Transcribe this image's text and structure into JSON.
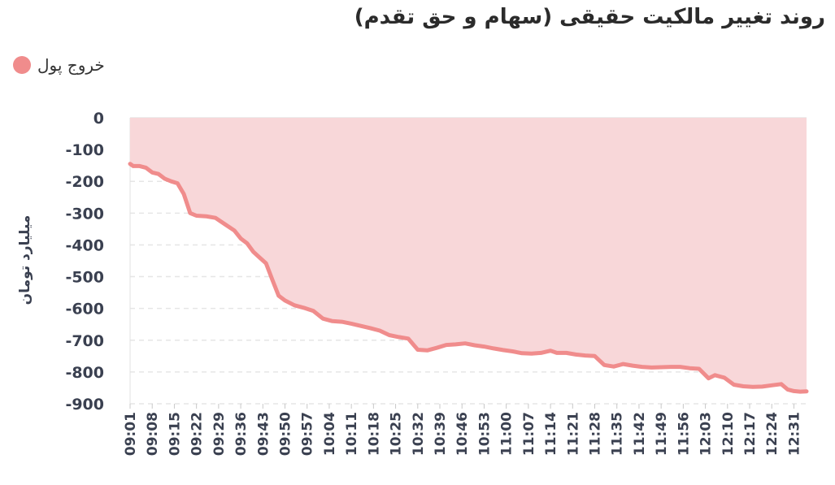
{
  "chart_data": {
    "type": "area",
    "title": "روند تغییر مالکیت حقیقی (سهام و حق تقدم)",
    "ylabel": "میلیارد تومان",
    "xlabel": "",
    "ylim": [
      -900,
      0
    ],
    "yticks": [
      0,
      -100,
      -200,
      -300,
      -400,
      -500,
      -600,
      -700,
      -800,
      -900
    ],
    "grid": true,
    "legend_position": "top-left",
    "x_tick_labels": [
      "09:01",
      "09:08",
      "09:15",
      "09:22",
      "09:29",
      "09:36",
      "09:43",
      "09:50",
      "09:57",
      "10:04",
      "10:11",
      "10:18",
      "10:25",
      "10:32",
      "10:39",
      "10:46",
      "10:53",
      "11:00",
      "11:07",
      "11:14",
      "11:21",
      "11:28",
      "11:35",
      "11:42",
      "11:49",
      "11:56",
      "12:03",
      "12:10",
      "12:17",
      "12:24",
      "12:31"
    ],
    "series": [
      {
        "name": "خروج پول",
        "color": "#f08c8c",
        "fill_color": "#f8d7d9",
        "points": [
          [
            "09:01",
            -145
          ],
          [
            "09:02",
            -152
          ],
          [
            "09:04",
            -152
          ],
          [
            "09:06",
            -157
          ],
          [
            "09:08",
            -172
          ],
          [
            "09:10",
            -177
          ],
          [
            "09:12",
            -192
          ],
          [
            "09:14",
            -200
          ],
          [
            "09:16",
            -206
          ],
          [
            "09:18",
            -240
          ],
          [
            "09:20",
            -300
          ],
          [
            "09:22",
            -308
          ],
          [
            "09:25",
            -310
          ],
          [
            "09:28",
            -315
          ],
          [
            "09:31",
            -335
          ],
          [
            "09:34",
            -355
          ],
          [
            "09:36",
            -380
          ],
          [
            "09:38",
            -395
          ],
          [
            "09:40",
            -422
          ],
          [
            "09:42",
            -440
          ],
          [
            "09:44",
            -458
          ],
          [
            "09:46",
            -510
          ],
          [
            "09:48",
            -560
          ],
          [
            "09:50",
            -575
          ],
          [
            "09:53",
            -590
          ],
          [
            "09:56",
            -598
          ],
          [
            "09:59",
            -608
          ],
          [
            "10:02",
            -632
          ],
          [
            "10:05",
            -640
          ],
          [
            "10:08",
            -642
          ],
          [
            "10:11",
            -648
          ],
          [
            "10:14",
            -655
          ],
          [
            "10:17",
            -662
          ],
          [
            "10:20",
            -670
          ],
          [
            "10:23",
            -684
          ],
          [
            "10:26",
            -690
          ],
          [
            "10:29",
            -695
          ],
          [
            "10:32",
            -730
          ],
          [
            "10:35",
            -732
          ],
          [
            "10:38",
            -724
          ],
          [
            "10:41",
            -715
          ],
          [
            "10:44",
            -713
          ],
          [
            "10:47",
            -710
          ],
          [
            "10:50",
            -716
          ],
          [
            "10:53",
            -720
          ],
          [
            "10:56",
            -726
          ],
          [
            "10:59",
            -731
          ],
          [
            "11:02",
            -735
          ],
          [
            "11:05",
            -741
          ],
          [
            "11:08",
            -742
          ],
          [
            "11:11",
            -740
          ],
          [
            "11:14",
            -733
          ],
          [
            "11:16",
            -740
          ],
          [
            "11:19",
            -740
          ],
          [
            "11:22",
            -745
          ],
          [
            "11:25",
            -748
          ],
          [
            "11:28",
            -750
          ],
          [
            "11:31",
            -778
          ],
          [
            "11:34",
            -783
          ],
          [
            "11:37",
            -775
          ],
          [
            "11:40",
            -780
          ],
          [
            "11:43",
            -784
          ],
          [
            "11:46",
            -786
          ],
          [
            "11:49",
            -785
          ],
          [
            "11:52",
            -784
          ],
          [
            "11:55",
            -784
          ],
          [
            "11:58",
            -788
          ],
          [
            "12:01",
            -790
          ],
          [
            "12:04",
            -820
          ],
          [
            "12:06",
            -810
          ],
          [
            "12:09",
            -818
          ],
          [
            "12:12",
            -840
          ],
          [
            "12:15",
            -845
          ],
          [
            "12:18",
            -847
          ],
          [
            "12:21",
            -846
          ],
          [
            "12:24",
            -842
          ],
          [
            "12:27",
            -838
          ],
          [
            "12:29",
            -855
          ],
          [
            "12:31",
            -860
          ],
          [
            "12:33",
            -862
          ],
          [
            "12:35",
            -861
          ]
        ]
      }
    ]
  }
}
